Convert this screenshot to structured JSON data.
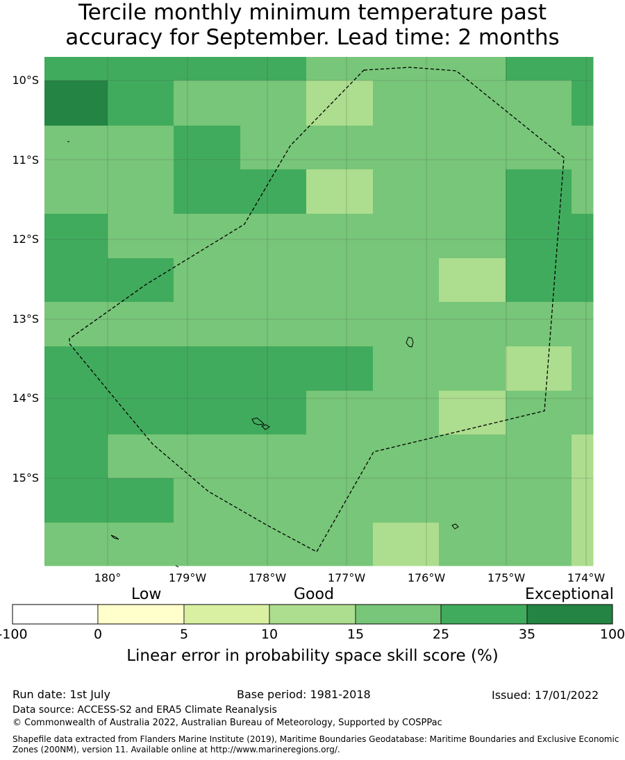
{
  "title": {
    "line1": "Tercile monthly minimum temperature past",
    "line2": "accuracy for September. Lead time: 2 months"
  },
  "colors": {
    "c_neg": "#ffffff",
    "c0": "#ffffcc",
    "c5": "#d9f0a3",
    "c10": "#addd8e",
    "c15": "#78c679",
    "c25": "#41ab5d",
    "c35": "#238443"
  },
  "map": {
    "lat_labels": [
      "10°S",
      "11°S",
      "12°S",
      "13°S",
      "14°S",
      "15°S"
    ],
    "lon_labels": [
      "180°",
      "179°W",
      "178°W",
      "177°W",
      "176°W",
      "175°W",
      "174°W"
    ],
    "grid_rows": [
      [
        "c25",
        "c25",
        "c25",
        "c25",
        "c15",
        "c15",
        "c15",
        "c25",
        "c25"
      ],
      [
        "c35",
        "c25",
        "c15",
        "c15",
        "c10",
        "c15",
        "c15",
        "c15",
        "c25"
      ],
      [
        "c15",
        "c15",
        "c25",
        "c15",
        "c15",
        "c15",
        "c15",
        "c15",
        "c15"
      ],
      [
        "c15",
        "c15",
        "c25",
        "c25",
        "c10",
        "c15",
        "c15",
        "c25",
        "c15"
      ],
      [
        "c25",
        "c15",
        "c15",
        "c15",
        "c15",
        "c15",
        "c15",
        "c25",
        "c25"
      ],
      [
        "c25",
        "c25",
        "c15",
        "c15",
        "c15",
        "c15",
        "c10",
        "c25",
        "c25"
      ],
      [
        "c15",
        "c15",
        "c15",
        "c15",
        "c15",
        "c15",
        "c15",
        "c15",
        "c15"
      ],
      [
        "c25",
        "c25",
        "c25",
        "c25",
        "c25",
        "c15",
        "c15",
        "c10",
        "c15"
      ],
      [
        "c25",
        "c25",
        "c25",
        "c25",
        "c15",
        "c15",
        "c10",
        "c15",
        "c15"
      ],
      [
        "c25",
        "c15",
        "c15",
        "c15",
        "c15",
        "c15",
        "c15",
        "c15",
        "c10"
      ],
      [
        "c25",
        "c25",
        "c15",
        "c15",
        "c15",
        "c15",
        "c15",
        "c15",
        "c10"
      ],
      [
        "c15",
        "c15",
        "c15",
        "c15",
        "c15",
        "c10",
        "c15",
        "c15",
        "c10"
      ]
    ]
  },
  "legend": {
    "low_label": "Low",
    "good_label": "Good",
    "exceptional_label": "Exceptional",
    "bins": [
      "c_neg",
      "c0",
      "c5",
      "c10",
      "c15",
      "c25",
      "c35"
    ],
    "ticks": [
      "-100",
      "0",
      "5",
      "10",
      "15",
      "25",
      "35",
      "100"
    ],
    "title": "Linear error in probability space skill score (%)"
  },
  "footer": {
    "run_date": "Run date: 1st July",
    "base_period": "Base period: 1981-2018",
    "issued": "Issued: 17/01/2022",
    "data_source": "Data source: ACCESS-S2 and ERA5 Climate Reanalysis",
    "copyright": "© Commonwealth of Australia 2022, Australian Bureau of Meteorology, Supported by COSPPac",
    "shapefile": "Shapefile data extracted from Flanders Marine Institute (2019), Maritime Boundaries Geodatabase: Maritime Boundaries and Exclusive Economic Zones (200NM), version 11. Available online at http://www.marineregions.org/."
  }
}
